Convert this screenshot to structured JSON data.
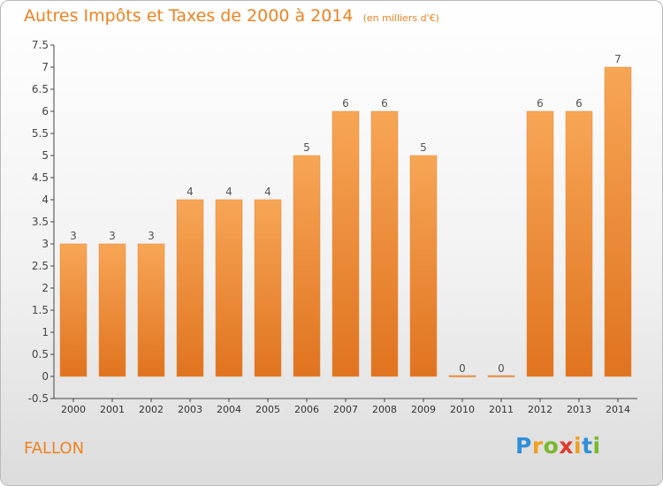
{
  "chart_data": {
    "type": "bar",
    "title": "Autres Impôts et Taxes de 2000 à 2014",
    "unit_label": "(en milliers d'€)",
    "categories": [
      "2000",
      "2001",
      "2002",
      "2003",
      "2004",
      "2005",
      "2006",
      "2007",
      "2008",
      "2009",
      "2010",
      "2011",
      "2012",
      "2013",
      "2014"
    ],
    "values": [
      3,
      3,
      3,
      4,
      4,
      4,
      5,
      6,
      6,
      5,
      0,
      0,
      6,
      6,
      7
    ],
    "value_labels": [
      "3",
      "3",
      "3",
      "4",
      "4",
      "4",
      "5",
      "6",
      "6",
      "5",
      "0",
      "0",
      "6",
      "6",
      "7"
    ],
    "y_ticks": [
      "-0.5",
      "0",
      "0.5",
      "1",
      "1.5",
      "2",
      "2.5",
      "3",
      "3.5",
      "4",
      "4.5",
      "5",
      "5.5",
      "6",
      "6.5",
      "7",
      "7.5"
    ],
    "ylim": [
      -0.5,
      7.5
    ],
    "grid": false,
    "legend": "none",
    "bar_color_top": "#f7a656",
    "bar_color_bottom": "#e0731f"
  },
  "location_label": "FALLON",
  "logo": {
    "letters": [
      "P",
      "r",
      "o",
      "x",
      "i",
      "t",
      "i"
    ],
    "colors": [
      "#2f8fd8",
      "#f0a020",
      "#7ab82e",
      "#e03a2a",
      "#f0a020",
      "#2f8fd8",
      "#7ab82e"
    ]
  }
}
